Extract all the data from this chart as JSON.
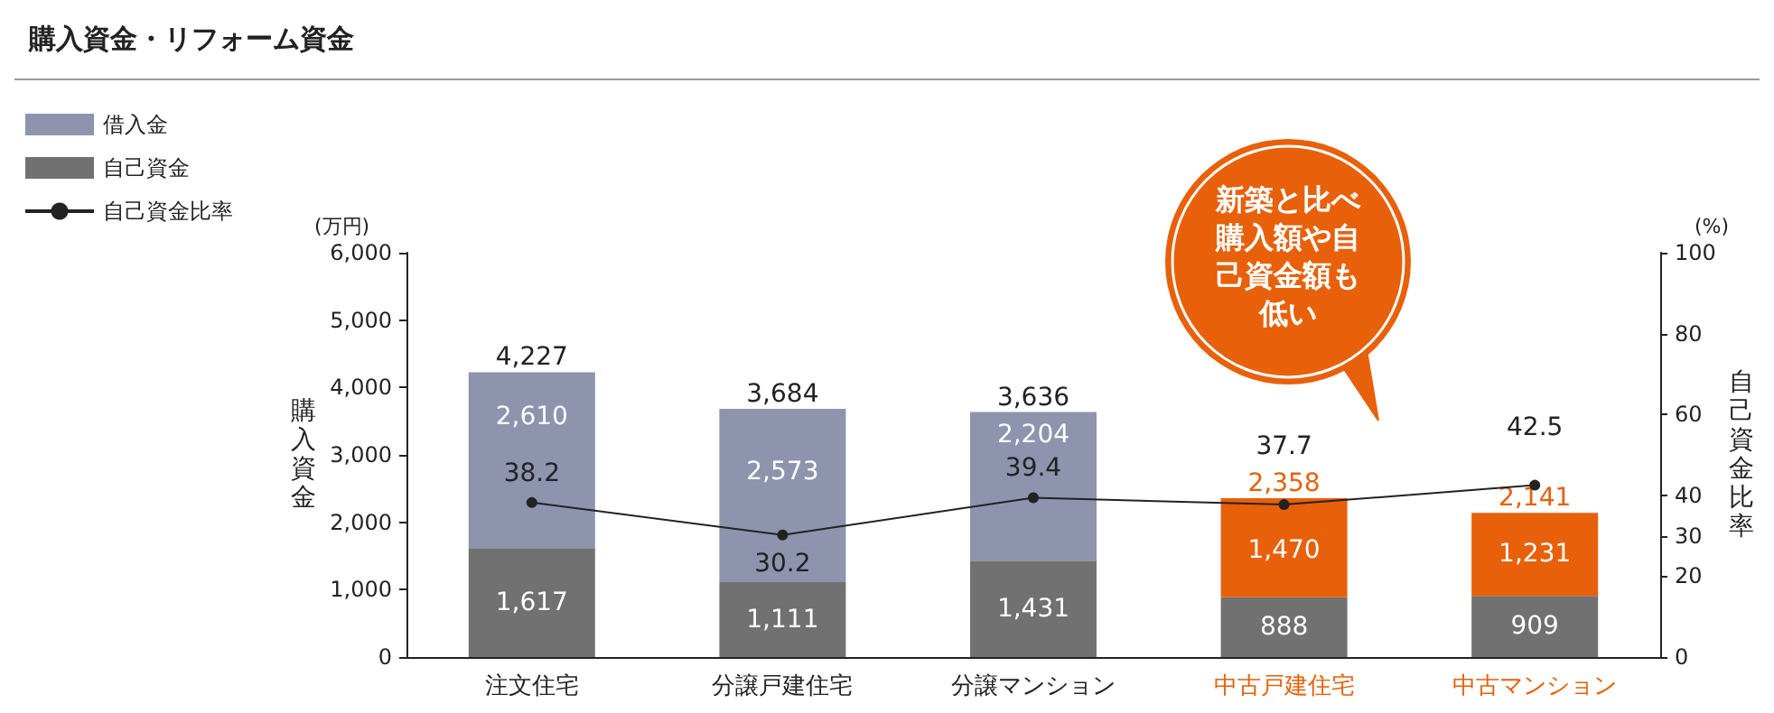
{
  "chart_data": {
    "type": "bar",
    "title": "購入資金・リフォーム資金",
    "categories": [
      "注文住宅",
      "分譲戸建住宅",
      "分譲マンション",
      "中古戸建住宅",
      "中古マンション"
    ],
    "series": [
      {
        "name": "自己資金",
        "color": "#717171",
        "values": [
          1617,
          1111,
          1431,
          888,
          909
        ],
        "value_labels": [
          "1,617",
          "1,111",
          "1,431",
          "888",
          "909"
        ]
      },
      {
        "name": "借入金",
        "color": "#8e93ae",
        "colors": [
          "#8e93ae",
          "#8e93ae",
          "#8e93ae",
          "#e8600a",
          "#e8600a"
        ],
        "values": [
          2610,
          2573,
          2204,
          1470,
          1231
        ],
        "value_labels": [
          "2,610",
          "2,573",
          "2,204",
          "1,470",
          "1,231"
        ]
      },
      {
        "name": "自己資金比率",
        "type": "line",
        "axis": "y2",
        "color": "#222222",
        "marker": "circle",
        "values": [
          38.2,
          30.2,
          39.4,
          37.7,
          42.5
        ],
        "value_labels": [
          "38.2",
          "30.2",
          "39.4",
          "37.7",
          "42.5"
        ]
      }
    ],
    "stacked": true,
    "totals": [
      "4,227",
      "3,684",
      "3,636",
      "2,358",
      "2,141"
    ],
    "ylabel": "購入資金",
    "y2label": "自己資金比率",
    "ylim": [
      0,
      6000
    ],
    "yticks": [
      {
        "value": 0,
        "label": "0"
      },
      {
        "value": 1000,
        "label": "1,000"
      },
      {
        "value": 2000,
        "label": "2,000"
      },
      {
        "value": 3000,
        "label": "3,000"
      },
      {
        "value": 4000,
        "label": "4,000"
      },
      {
        "value": 5000,
        "label": "5,000"
      },
      {
        "value": 6000,
        "label": "6,000"
      }
    ],
    "y2lim": [
      0,
      100
    ],
    "y2ticks": [
      0,
      20,
      30,
      40,
      60,
      80,
      100
    ],
    "annotations": [
      "(万円)",
      "(%)",
      "新築と比べ購入額や自己資金額も低い"
    ],
    "grid": false,
    "legend": "top left"
  }
}
